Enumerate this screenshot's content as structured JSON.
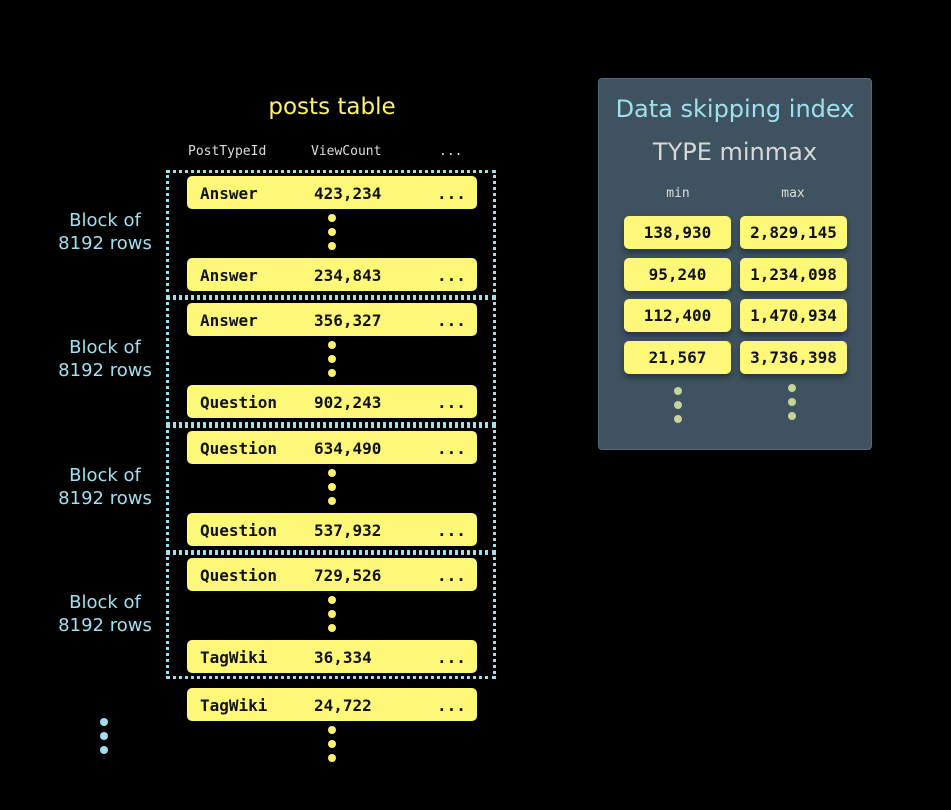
{
  "table": {
    "title": "posts table",
    "columns": [
      "PostTypeId",
      "ViewCount",
      "..."
    ],
    "blocks": [
      {
        "label_line1": "Block of",
        "label_line2": "8192 rows",
        "first": {
          "type": "Answer",
          "views": "423,234",
          "more": "..."
        },
        "last": {
          "type": "Answer",
          "views": "234,843",
          "more": "..."
        }
      },
      {
        "label_line1": "Block of",
        "label_line2": "8192 rows",
        "first": {
          "type": "Answer",
          "views": "356,327",
          "more": "..."
        },
        "last": {
          "type": "Question",
          "views": "902,243",
          "more": "..."
        }
      },
      {
        "label_line1": "Block of",
        "label_line2": "8192 rows",
        "first": {
          "type": "Question",
          "views": "634,490",
          "more": "..."
        },
        "last": {
          "type": "Question",
          "views": "537,932",
          "more": "..."
        }
      },
      {
        "label_line1": "Block of",
        "label_line2": "8192 rows",
        "first": {
          "type": "Question",
          "views": "729,526",
          "more": "..."
        },
        "last": {
          "type": "TagWiki",
          "views": "36,334",
          "more": "..."
        }
      }
    ],
    "trailing_row": {
      "type": "TagWiki",
      "views": "24,722",
      "more": "..."
    }
  },
  "index": {
    "title": "Data skipping index",
    "subtitle": "TYPE minmax",
    "min_header": "min",
    "max_header": "max",
    "entries": [
      {
        "min": "138,930",
        "max": "2,829,145"
      },
      {
        "min": "95,240",
        "max": "1,234,098"
      },
      {
        "min": "112,400",
        "max": "1,470,934"
      },
      {
        "min": "21,567",
        "max": "3,736,398"
      }
    ]
  },
  "colors": {
    "row": "#fdf878",
    "accent_blue": "#9fe0ef",
    "panel": "#3e5260",
    "title_yellow": "#fdf36b"
  }
}
